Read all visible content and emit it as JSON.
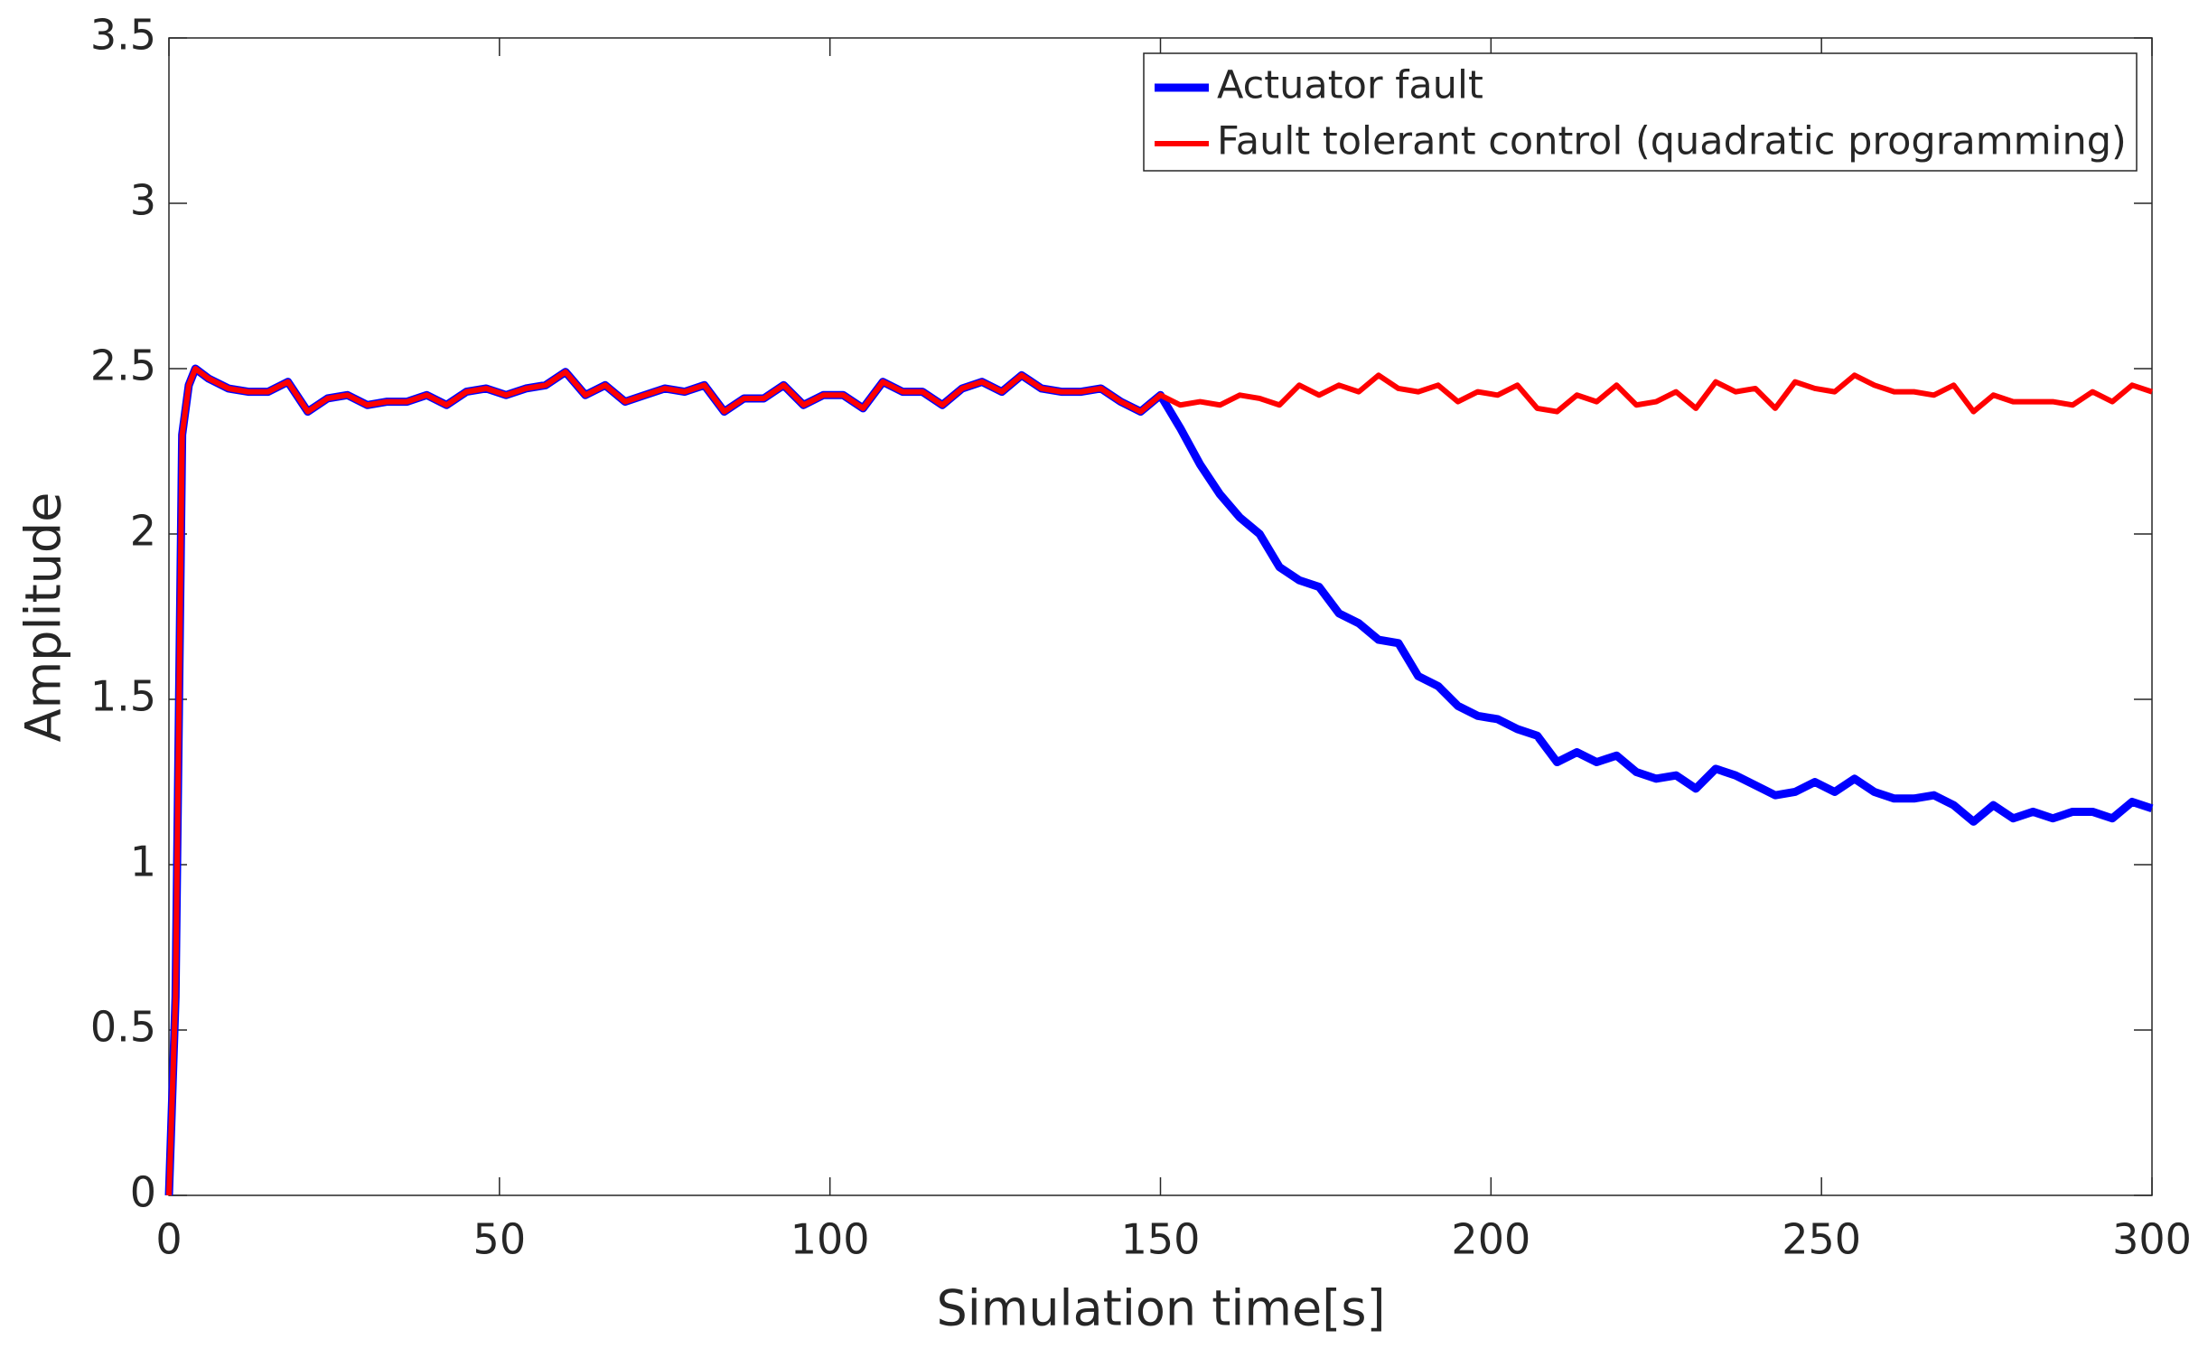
{
  "chart_data": {
    "type": "line",
    "xlabel": "Simulation time[s]",
    "ylabel": "Amplitude",
    "x": [
      0,
      1,
      2,
      3,
      4,
      6,
      9,
      12,
      15,
      18,
      21,
      24,
      27,
      30,
      33,
      36,
      39,
      42,
      45,
      48,
      51,
      54,
      57,
      60,
      63,
      66,
      69,
      72,
      75,
      78,
      81,
      84,
      87,
      90,
      93,
      96,
      99,
      102,
      105,
      108,
      111,
      114,
      117,
      120,
      123,
      126,
      129,
      132,
      135,
      138,
      141,
      144,
      147,
      150,
      153,
      156,
      159,
      162,
      165,
      168,
      171,
      174,
      177,
      180,
      183,
      186,
      189,
      192,
      195,
      198,
      201,
      204,
      207,
      210,
      213,
      216,
      219,
      222,
      225,
      228,
      231,
      234,
      237,
      240,
      243,
      246,
      249,
      252,
      255,
      258,
      261,
      264,
      267,
      270,
      273,
      276,
      279,
      282,
      285,
      288,
      291,
      294,
      297,
      300
    ],
    "series": [
      {
        "name": "Actuator fault",
        "color": "#0000ff",
        "values": [
          0,
          0.6,
          2.3,
          2.45,
          2.5,
          2.47,
          2.44,
          2.43,
          2.43,
          2.46,
          2.37,
          2.41,
          2.42,
          2.39,
          2.4,
          2.4,
          2.42,
          2.39,
          2.43,
          2.44,
          2.42,
          2.44,
          2.45,
          2.49,
          2.42,
          2.45,
          2.4,
          2.42,
          2.44,
          2.43,
          2.45,
          2.37,
          2.41,
          2.41,
          2.45,
          2.39,
          2.42,
          2.42,
          2.38,
          2.46,
          2.43,
          2.43,
          2.39,
          2.44,
          2.46,
          2.43,
          2.48,
          2.44,
          2.43,
          2.43,
          2.44,
          2.4,
          2.37,
          2.42,
          2.32,
          2.21,
          2.12,
          2.05,
          2.0,
          1.9,
          1.86,
          1.84,
          1.76,
          1.73,
          1.68,
          1.67,
          1.57,
          1.54,
          1.48,
          1.45,
          1.44,
          1.41,
          1.39,
          1.31,
          1.34,
          1.31,
          1.33,
          1.28,
          1.26,
          1.27,
          1.23,
          1.29,
          1.27,
          1.24,
          1.21,
          1.22,
          1.25,
          1.22,
          1.26,
          1.22,
          1.2,
          1.2,
          1.21,
          1.18,
          1.13,
          1.18,
          1.14,
          1.16,
          1.14,
          1.16,
          1.16,
          1.14,
          1.19,
          1.17
        ]
      },
      {
        "name": "Fault tolerant control (quadratic programming)",
        "color": "#ff0000",
        "values": [
          0,
          0.6,
          2.3,
          2.45,
          2.5,
          2.47,
          2.44,
          2.43,
          2.43,
          2.46,
          2.37,
          2.41,
          2.42,
          2.39,
          2.4,
          2.4,
          2.42,
          2.39,
          2.43,
          2.44,
          2.42,
          2.44,
          2.45,
          2.49,
          2.42,
          2.45,
          2.4,
          2.42,
          2.44,
          2.43,
          2.45,
          2.37,
          2.41,
          2.41,
          2.45,
          2.39,
          2.42,
          2.42,
          2.38,
          2.46,
          2.43,
          2.43,
          2.39,
          2.44,
          2.46,
          2.43,
          2.48,
          2.44,
          2.43,
          2.43,
          2.44,
          2.4,
          2.37,
          2.42,
          2.39,
          2.4,
          2.39,
          2.42,
          2.41,
          2.39,
          2.45,
          2.42,
          2.45,
          2.43,
          2.48,
          2.44,
          2.43,
          2.45,
          2.4,
          2.43,
          2.42,
          2.45,
          2.38,
          2.37,
          2.42,
          2.4,
          2.45,
          2.39,
          2.4,
          2.43,
          2.38,
          2.46,
          2.43,
          2.44,
          2.38,
          2.46,
          2.44,
          2.43,
          2.48,
          2.45,
          2.43,
          2.43,
          2.42,
          2.45,
          2.37,
          2.42,
          2.4,
          2.4,
          2.4,
          2.39,
          2.43,
          2.4,
          2.45,
          2.43
        ]
      }
    ],
    "xlim": [
      0,
      300
    ],
    "xticks": [
      0,
      50,
      100,
      150,
      200,
      250,
      300
    ],
    "ylim": [
      0,
      3.5
    ],
    "yticks": [
      0,
      0.5,
      1,
      1.5,
      2,
      2.5,
      3,
      3.5
    ],
    "grid": false,
    "legend": "upper right"
  }
}
